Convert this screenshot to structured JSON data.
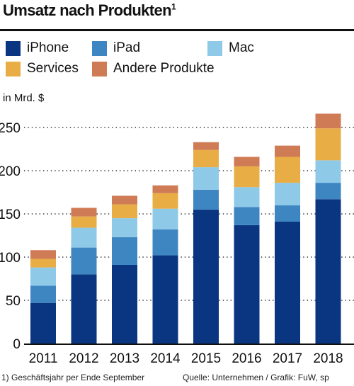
{
  "title": "Umsatz nach Produkten",
  "title_footnote_mark": "1",
  "footnote": "1) Geschäftsjahr per Ende September",
  "source": "Quelle: Unternehmen / Grafik: FuW, sp",
  "chart_data": {
    "type": "bar",
    "stacked": true,
    "unit_label": "in Mrd. $",
    "categories": [
      "2011",
      "2012",
      "2013",
      "2014",
      "2015",
      "2016",
      "2017",
      "2018"
    ],
    "ylim": [
      0,
      270
    ],
    "yticks": [
      0,
      50,
      100,
      150,
      200,
      250
    ],
    "grid": "horizontal-dotted",
    "legend_position": "top",
    "series": [
      {
        "name": "iPhone",
        "color": "#0a3580",
        "values": [
          47,
          80,
          91,
          102,
          155,
          137,
          141,
          167
        ]
      },
      {
        "name": "iPad",
        "color": "#3d86c2",
        "values": [
          20,
          31,
          32,
          30,
          23,
          21,
          19,
          19
        ]
      },
      {
        "name": "Mac",
        "color": "#8ec9e8",
        "values": [
          21,
          23,
          22,
          24,
          26,
          23,
          26,
          26
        ]
      },
      {
        "name": "Services",
        "color": "#e8ae45",
        "values": [
          10,
          13,
          16,
          18,
          20,
          24,
          30,
          37
        ]
      },
      {
        "name": "Andere Produkte",
        "color": "#cf7b56",
        "values": [
          10,
          10,
          10,
          9,
          9,
          11,
          13,
          17
        ]
      }
    ]
  }
}
